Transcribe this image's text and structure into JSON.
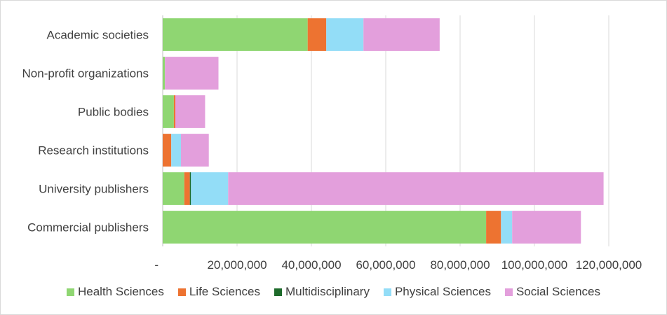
{
  "chart_data": {
    "type": "stacked-bar-horizontal",
    "title": "",
    "xlabel": "",
    "ylabel": "",
    "categories": [
      "Commercial publishers",
      "University publishers",
      "Research institutions",
      "Public bodies",
      "Non-profit organizations",
      "Academic societies"
    ],
    "series": [
      {
        "name": "Health Sciences",
        "color": "#8fd672",
        "values": [
          87000000,
          5800000,
          0,
          3000000,
          600000,
          39000000
        ]
      },
      {
        "name": "Life Sciences",
        "color": "#ed7331",
        "values": [
          4000000,
          1500000,
          2300000,
          400000,
          0,
          5000000
        ]
      },
      {
        "name": "Multidisciplinary",
        "color": "#1e6b2b",
        "values": [
          0,
          300000,
          0,
          0,
          0,
          0
        ]
      },
      {
        "name": "Physical Sciences",
        "color": "#93ddf7",
        "values": [
          3000000,
          10000000,
          2600000,
          0,
          0,
          10000000
        ]
      },
      {
        "name": "Social Sciences",
        "color": "#e39fdc",
        "values": [
          18500000,
          101000000,
          7500000,
          8000000,
          14400000,
          20500000
        ]
      }
    ],
    "xlim": [
      0,
      120000000
    ],
    "x_ticks": [
      0,
      20000000,
      40000000,
      60000000,
      80000000,
      100000000,
      120000000
    ],
    "x_tick_labels": [
      "-",
      "20,000,000",
      "40,000,000",
      "60,000,000",
      "80,000,000",
      "100,000,000",
      "120,000,000"
    ],
    "gridlines": true,
    "legend_position": "bottom"
  }
}
